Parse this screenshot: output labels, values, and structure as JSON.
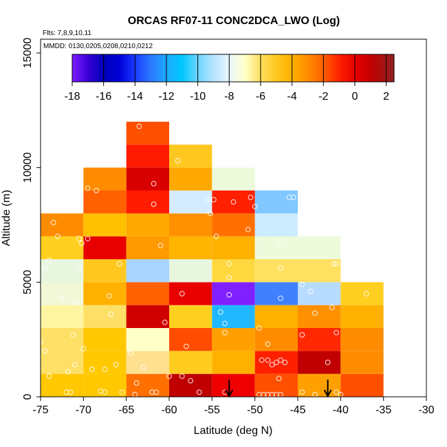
{
  "chart_data": {
    "type": "heatmap",
    "title": "ORCAS RF07-11 CONC2DCA_LWO (Log)",
    "annotations": [
      "Flts: 7,8,9,10,11",
      "MMDD: 0130,0205,0208,0210,0212"
    ],
    "xlabel": "Latitude (deg N)",
    "ylabel": "Altitude (m)",
    "xlim": [
      -75,
      -30
    ],
    "ylim": [
      0,
      16000
    ],
    "x_ticks": [
      -75,
      -70,
      -65,
      -60,
      -55,
      -50,
      -45,
      -40,
      -35,
      -30
    ],
    "x_tick_labels": [
      "-75",
      "-70",
      "-65",
      "-60",
      "-55",
      "-50",
      "-45",
      "-40",
      "-35",
      "-30"
    ],
    "y_ticks": [
      0,
      5000,
      10000,
      15000
    ],
    "y_tick_labels": [
      "0",
      "5000",
      "10000",
      "15000"
    ],
    "colorbar": {
      "range": [
        -18,
        2.5
      ],
      "ticks": [
        -18,
        -16,
        -14,
        -12,
        -10,
        -8,
        -6,
        -4,
        -2,
        0,
        2
      ],
      "tick_labels": [
        "-18",
        "-16",
        "-14",
        "-12",
        "-10",
        "-8",
        "-6",
        "-4",
        "-2",
        "0",
        "2"
      ],
      "stops": [
        {
          "v": -18,
          "c": "#7d1cff"
        },
        {
          "v": -17,
          "c": "#3a00d8"
        },
        {
          "v": -16,
          "c": "#0000b8"
        },
        {
          "v": -15,
          "c": "#0000d8"
        },
        {
          "v": -14,
          "c": "#1a3aff"
        },
        {
          "v": -13,
          "c": "#2a78ff"
        },
        {
          "v": -12,
          "c": "#1ea8ff"
        },
        {
          "v": -11,
          "c": "#00c8ff"
        },
        {
          "v": -10,
          "c": "#6cd4ff"
        },
        {
          "v": -9,
          "c": "#b8e4ff"
        },
        {
          "v": -8,
          "c": "#e8f6ff"
        },
        {
          "v": -7,
          "c": "#ffffc8"
        },
        {
          "v": -6,
          "c": "#ffe060"
        },
        {
          "v": -5,
          "c": "#ffc820"
        },
        {
          "v": -4,
          "c": "#ffb000"
        },
        {
          "v": -3,
          "c": "#ff8c00"
        },
        {
          "v": -2,
          "c": "#ff6000"
        },
        {
          "v": -1,
          "c": "#ff2200"
        },
        {
          "v": 0,
          "c": "#e80000"
        },
        {
          "v": 1,
          "c": "#c40000"
        },
        {
          "v": 2.5,
          "c": "#902020"
        }
      ]
    },
    "cell_size": {
      "lat": 5,
      "alt": 1000
    },
    "cells": [
      {
        "lat": -75,
        "alt": 0,
        "c": "#ffc800"
      },
      {
        "lat": -75,
        "alt": 1000,
        "c": "#ffe066"
      },
      {
        "lat": -75,
        "alt": 2000,
        "c": "#ffe066"
      },
      {
        "lat": -75,
        "alt": 3000,
        "c": "#fff4a0"
      },
      {
        "lat": -75,
        "alt": 4000,
        "c": "#f2f7d8"
      },
      {
        "lat": -75,
        "alt": 5000,
        "c": "#e8f6e0"
      },
      {
        "lat": -75,
        "alt": 6000,
        "c": "#ffd020"
      },
      {
        "lat": -75,
        "alt": 7000,
        "c": "#ff8c00"
      },
      {
        "lat": -70,
        "alt": 0,
        "c": "#ffc800"
      },
      {
        "lat": -70,
        "alt": 1000,
        "c": "#ffc800"
      },
      {
        "lat": -70,
        "alt": 2000,
        "c": "#ffc800"
      },
      {
        "lat": -70,
        "alt": 3000,
        "c": "#ffe066"
      },
      {
        "lat": -70,
        "alt": 4000,
        "c": "#ffb000"
      },
      {
        "lat": -70,
        "alt": 5000,
        "c": "#ffc820"
      },
      {
        "lat": -70,
        "alt": 6000,
        "c": "#e80000"
      },
      {
        "lat": -70,
        "alt": 7000,
        "c": "#ffc000"
      },
      {
        "lat": -70,
        "alt": 8000,
        "c": "#ff6000"
      },
      {
        "lat": -70,
        "alt": 9000,
        "c": "#ff8c00"
      },
      {
        "lat": -65,
        "alt": 0,
        "c": "#ff7000"
      },
      {
        "lat": -65,
        "alt": 1000,
        "c": "#ffe090"
      },
      {
        "lat": -65,
        "alt": 2000,
        "c": "#ffffc8"
      },
      {
        "lat": -65,
        "alt": 3000,
        "c": "#d00000"
      },
      {
        "lat": -65,
        "alt": 4000,
        "c": "#ff6000"
      },
      {
        "lat": -65,
        "alt": 5000,
        "c": "#a8d4ff"
      },
      {
        "lat": -65,
        "alt": 6000,
        "c": "#ff9a00"
      },
      {
        "lat": -65,
        "alt": 7000,
        "c": "#ffa800"
      },
      {
        "lat": -65,
        "alt": 8000,
        "c": "#ff1c00"
      },
      {
        "lat": -65,
        "alt": 9000,
        "c": "#d80000"
      },
      {
        "lat": -65,
        "alt": 10000,
        "c": "#ff1c00"
      },
      {
        "lat": -65,
        "alt": 11000,
        "c": "#ff5000"
      },
      {
        "lat": -60,
        "alt": 0,
        "c": "#c00000"
      },
      {
        "lat": -60,
        "alt": 1000,
        "c": "#ffcc20"
      },
      {
        "lat": -60,
        "alt": 2000,
        "c": "#ff4c00"
      },
      {
        "lat": -60,
        "alt": 3000,
        "c": "#ffd020"
      },
      {
        "lat": -60,
        "alt": 4000,
        "c": "#e80000"
      },
      {
        "lat": -60,
        "alt": 5000,
        "c": "#e8f6e0"
      },
      {
        "lat": -60,
        "alt": 6000,
        "c": "#ffb400"
      },
      {
        "lat": -60,
        "alt": 7000,
        "c": "#ff9000"
      },
      {
        "lat": -60,
        "alt": 8000,
        "c": "#d4ecff"
      },
      {
        "lat": -60,
        "alt": 9000,
        "c": "#ffa800"
      },
      {
        "lat": -60,
        "alt": 10000,
        "c": "#ffc820"
      },
      {
        "lat": -55,
        "alt": 0,
        "c": "#ee0000"
      },
      {
        "lat": -55,
        "alt": 1000,
        "c": "#ffb000"
      },
      {
        "lat": -55,
        "alt": 2000,
        "c": "#ffa000"
      },
      {
        "lat": -55,
        "alt": 3000,
        "c": "#20b8ff"
      },
      {
        "lat": -55,
        "alt": 4000,
        "c": "#8020ff"
      },
      {
        "lat": -55,
        "alt": 5000,
        "c": "#ffd840"
      },
      {
        "lat": -55,
        "alt": 6000,
        "c": "#ffb000"
      },
      {
        "lat": -55,
        "alt": 7000,
        "c": "#ff7000"
      },
      {
        "lat": -55,
        "alt": 8000,
        "c": "#ff2000"
      },
      {
        "lat": -55,
        "alt": 9000,
        "c": "#eefadc"
      },
      {
        "lat": -50,
        "alt": 0,
        "c": "#ff5000"
      },
      {
        "lat": -50,
        "alt": 1000,
        "c": "#ff2000"
      },
      {
        "lat": -50,
        "alt": 2000,
        "c": "#ff8c00"
      },
      {
        "lat": -50,
        "alt": 3000,
        "c": "#ffb000"
      },
      {
        "lat": -50,
        "alt": 4000,
        "c": "#4080ff"
      },
      {
        "lat": -50,
        "alt": 5000,
        "c": "#ffe060"
      },
      {
        "lat": -50,
        "alt": 6000,
        "c": "#eefadc"
      },
      {
        "lat": -50,
        "alt": 7000,
        "c": "#ccecff"
      },
      {
        "lat": -50,
        "alt": 8000,
        "c": "#80c8ff"
      },
      {
        "lat": -45,
        "alt": 0,
        "c": "#ffa000"
      },
      {
        "lat": -45,
        "alt": 1000,
        "c": "#c00000"
      },
      {
        "lat": -45,
        "alt": 2000,
        "c": "#ff2800"
      },
      {
        "lat": -45,
        "alt": 3000,
        "c": "#ff9000"
      },
      {
        "lat": -45,
        "alt": 4000,
        "c": "#b8dcff"
      },
      {
        "lat": -45,
        "alt": 5000,
        "c": "#ffe060"
      },
      {
        "lat": -45,
        "alt": 6000,
        "c": "#eefadc"
      },
      {
        "lat": -40,
        "alt": 0,
        "c": "#ff5000"
      },
      {
        "lat": -40,
        "alt": 1000,
        "c": "#ff8c00"
      },
      {
        "lat": -40,
        "alt": 2000,
        "c": "#ff8c00"
      },
      {
        "lat": -40,
        "alt": 3000,
        "c": "#ffb000"
      },
      {
        "lat": -40,
        "alt": 4000,
        "c": "#ffd020"
      }
    ],
    "points": [
      [
        -75,
        2400
      ],
      [
        -74.5,
        2000
      ],
      [
        -74,
        5950
      ],
      [
        -74,
        900
      ],
      [
        -74.5,
        5600
      ],
      [
        -73.5,
        7600
      ],
      [
        -73,
        7000
      ],
      [
        -72.5,
        4300
      ],
      [
        -72,
        200
      ],
      [
        -71.8,
        1100
      ],
      [
        -71.5,
        200
      ],
      [
        -71.2,
        2700
      ],
      [
        -71,
        1400
      ],
      [
        -70.8,
        4100
      ],
      [
        -70.5,
        5600
      ],
      [
        -70.5,
        6900
      ],
      [
        -70.2,
        6700
      ],
      [
        -70,
        2100
      ],
      [
        -69.5,
        9100
      ],
      [
        -69.5,
        6900
      ],
      [
        -69,
        1200
      ],
      [
        -68.5,
        9000
      ],
      [
        -68,
        250
      ],
      [
        -67.5,
        1200
      ],
      [
        -67.5,
        200
      ],
      [
        -67,
        4400
      ],
      [
        -66.8,
        3600
      ],
      [
        -66.2,
        1400
      ],
      [
        -65.8,
        5800
      ],
      [
        -65.5,
        200
      ],
      [
        -64.5,
        1900
      ],
      [
        -64,
        100
      ],
      [
        -63.8,
        600
      ],
      [
        -63.5,
        11800
      ],
      [
        -63,
        1300
      ],
      [
        -62,
        200
      ],
      [
        -61.8,
        9300
      ],
      [
        -61.8,
        8400
      ],
      [
        -61.5,
        200
      ],
      [
        -61,
        6600
      ],
      [
        -60.5,
        3250
      ],
      [
        -60,
        900
      ],
      [
        -59,
        10300
      ],
      [
        -58.5,
        4500
      ],
      [
        -58,
        2200
      ],
      [
        -58.5,
        900
      ],
      [
        -57.5,
        700
      ],
      [
        -56.5,
        200
      ],
      [
        -55.5,
        8600
      ],
      [
        -55.2,
        8000
      ],
      [
        -54.8,
        8600
      ],
      [
        -54.5,
        7000
      ],
      [
        -54,
        3700
      ],
      [
        -53.5,
        3200
      ],
      [
        -53.5,
        2800
      ],
      [
        -53.5,
        200
      ],
      [
        -53,
        4450
      ],
      [
        -53,
        5800
      ],
      [
        -53,
        5200
      ],
      [
        -52.5,
        8500
      ],
      [
        -50.8,
        7300
      ],
      [
        -50.5,
        8700
      ],
      [
        -50,
        8300
      ],
      [
        -49.5,
        3000
      ],
      [
        -49.2,
        1600
      ],
      [
        -48.5,
        2300
      ],
      [
        -48.5,
        1600
      ],
      [
        -48,
        1400
      ],
      [
        -47.5,
        1500
      ],
      [
        -47.2,
        800
      ],
      [
        -47,
        1600
      ],
      [
        -47,
        6800
      ],
      [
        -47,
        5600
      ],
      [
        -47,
        4300
      ],
      [
        -46.5,
        1500
      ],
      [
        -46,
        8700
      ],
      [
        -45.5,
        8700
      ],
      [
        -44.5,
        4900
      ],
      [
        -44.5,
        2700
      ],
      [
        -43.5,
        4600
      ],
      [
        -43,
        3650
      ],
      [
        -43,
        100
      ],
      [
        -41.5,
        1500
      ],
      [
        -41,
        3900
      ],
      [
        -40.8,
        5800
      ],
      [
        -40.5,
        5800
      ],
      [
        -40.5,
        2800
      ],
      [
        -40,
        100
      ],
      [
        -37,
        4500
      ],
      [
        -49.5,
        100
      ],
      [
        -49,
        100
      ],
      [
        -48.5,
        100
      ],
      [
        -48,
        100
      ],
      [
        -47.5,
        100
      ],
      [
        -47,
        100
      ],
      [
        -44.5,
        200
      ],
      [
        -40.5,
        200
      ]
    ],
    "arrows": [
      {
        "lat": -53,
        "alt_top": 750
      },
      {
        "lat": -41.5,
        "alt_top": 750
      }
    ],
    "grid": false,
    "legend_placement": "top (colorbar inside plot)"
  }
}
